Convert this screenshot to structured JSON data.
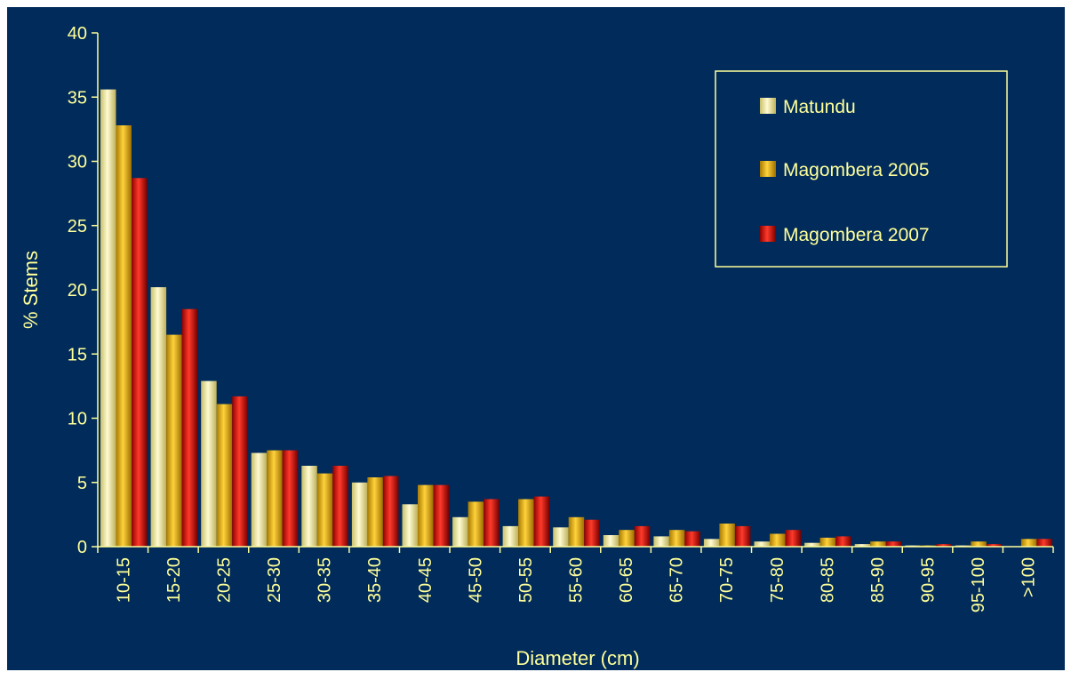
{
  "colors": {
    "background": "#012B5B",
    "text": "#FFFF99",
    "axis": "#FFFF99",
    "series": [
      "#EDE6A2",
      "#E6B20A",
      "#E10F12"
    ]
  },
  "chart_data": {
    "type": "bar",
    "title": "",
    "xlabel": "Diameter (cm)",
    "ylabel": "% Stems",
    "ylim": [
      0,
      40
    ],
    "yticks": [
      "0",
      "5",
      "10",
      "15",
      "20",
      "25",
      "30",
      "35",
      "40"
    ],
    "grid": false,
    "legend_position": "top-right",
    "categories": [
      "10-15",
      "15-20",
      "20-25",
      "25-30",
      "30-35",
      "35-40",
      "40-45",
      "45-50",
      "50-55",
      "55-60",
      "60-65",
      "65-70",
      "70-75",
      "75-80",
      "80-85",
      "85-90",
      "90-95",
      "95-100",
      ">100"
    ],
    "series": [
      {
        "name": "Matundu",
        "values": [
          35.6,
          20.2,
          12.9,
          7.3,
          6.3,
          5.0,
          3.3,
          2.3,
          1.6,
          1.5,
          0.9,
          0.8,
          0.6,
          0.4,
          0.3,
          0.2,
          0.1,
          0.1,
          0.0
        ]
      },
      {
        "name": "Magombera 2005",
        "values": [
          32.8,
          16.5,
          11.1,
          7.5,
          5.7,
          5.4,
          4.8,
          3.5,
          3.7,
          2.3,
          1.3,
          1.3,
          1.8,
          1.0,
          0.7,
          0.4,
          0.1,
          0.4,
          0.6
        ]
      },
      {
        "name": "Magombera 2007",
        "values": [
          28.7,
          18.5,
          11.7,
          7.5,
          6.3,
          5.5,
          4.8,
          3.7,
          3.9,
          2.1,
          1.6,
          1.2,
          1.6,
          1.3,
          0.8,
          0.4,
          0.2,
          0.2,
          0.6
        ]
      }
    ]
  }
}
